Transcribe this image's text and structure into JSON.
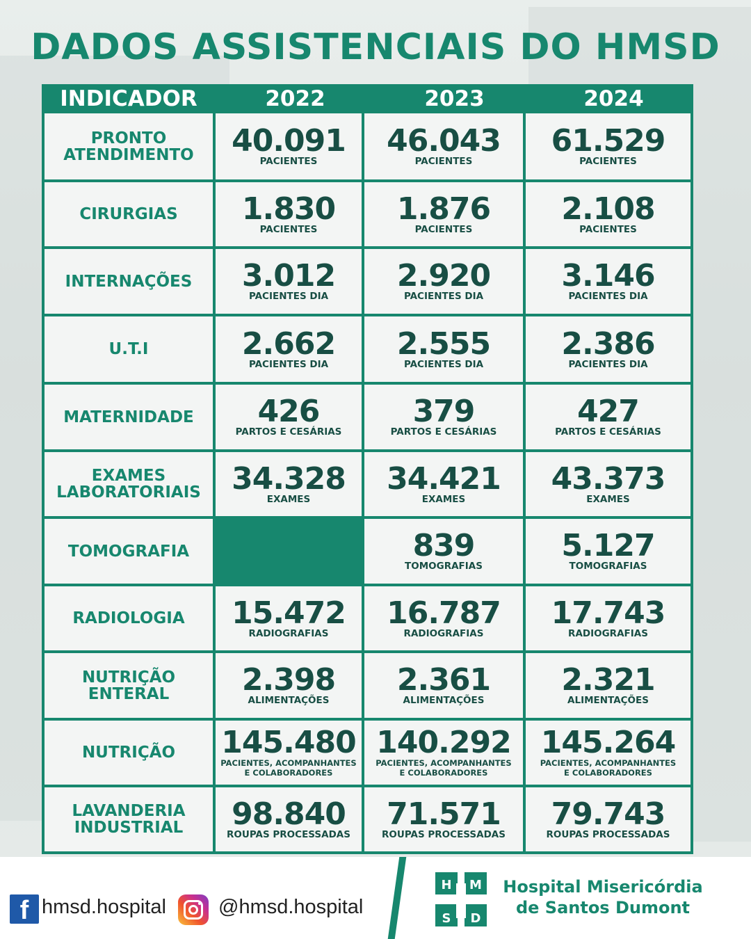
{
  "title": "DADOS ASSISTENCIAIS DO HMSD",
  "header": {
    "indicador": "INDICADOR",
    "years": [
      "2022",
      "2023",
      "2024"
    ]
  },
  "rows": [
    {
      "label": "PRONTO\nATENDIMENTO",
      "cells": [
        {
          "value": "40.091",
          "unit": "PACIENTES"
        },
        {
          "value": "46.043",
          "unit": "PACIENTES"
        },
        {
          "value": "61.529",
          "unit": "PACIENTES"
        }
      ]
    },
    {
      "label": "CIRURGIAS",
      "cells": [
        {
          "value": "1.830",
          "unit": "PACIENTES"
        },
        {
          "value": "1.876",
          "unit": "PACIENTES"
        },
        {
          "value": "2.108",
          "unit": "PACIENTES"
        }
      ]
    },
    {
      "label": "INTERNAÇÕES",
      "cells": [
        {
          "value": "3.012",
          "unit": "PACIENTES DIA"
        },
        {
          "value": "2.920",
          "unit": "PACIENTES DIA"
        },
        {
          "value": "3.146",
          "unit": "PACIENTES DIA"
        }
      ]
    },
    {
      "label": "U.T.I",
      "cells": [
        {
          "value": "2.662",
          "unit": "PACIENTES DIA"
        },
        {
          "value": "2.555",
          "unit": "PACIENTES DIA"
        },
        {
          "value": "2.386",
          "unit": "PACIENTES DIA"
        }
      ]
    },
    {
      "label": "MATERNIDADE",
      "cells": [
        {
          "value": "426",
          "unit": "PARTOS E CESÁRIAS"
        },
        {
          "value": "379",
          "unit": "PARTOS E CESÁRIAS"
        },
        {
          "value": "427",
          "unit": "PARTOS E CESÁRIAS"
        }
      ]
    },
    {
      "label": "EXAMES\nLABORATORIAIS",
      "cells": [
        {
          "value": "34.328",
          "unit": "EXAMES"
        },
        {
          "value": "34.421",
          "unit": "EXAMES"
        },
        {
          "value": "43.373",
          "unit": "EXAMES"
        }
      ]
    },
    {
      "label": "TOMOGRAFIA",
      "cells": [
        null,
        {
          "value": "839",
          "unit": "TOMOGRAFIAS"
        },
        {
          "value": "5.127",
          "unit": "TOMOGRAFIAS"
        }
      ]
    },
    {
      "label": "RADIOLOGIA",
      "cells": [
        {
          "value": "15.472",
          "unit": "RADIOGRAFIAS"
        },
        {
          "value": "16.787",
          "unit": "RADIOGRAFIAS"
        },
        {
          "value": "17.743",
          "unit": "RADIOGRAFIAS"
        }
      ]
    },
    {
      "label": "NUTRIÇÃO\nENTERAL",
      "cells": [
        {
          "value": "2.398",
          "unit": "ALIMENTAÇÕES"
        },
        {
          "value": "2.361",
          "unit": "ALIMENTAÇÕES"
        },
        {
          "value": "2.321",
          "unit": "ALIMENTAÇÕES"
        }
      ]
    },
    {
      "label": "NUTRIÇÃO",
      "cells": [
        {
          "value": "145.480",
          "unit": "PACIENTES, ACOMPANHANTES\nE COLABORADORES",
          "small": true
        },
        {
          "value": "140.292",
          "unit": "PACIENTES, ACOMPANHANTES\nE COLABORADORES",
          "small": true
        },
        {
          "value": "145.264",
          "unit": "PACIENTES, ACOMPANHANTES\nE COLABORADORES",
          "small": true
        }
      ]
    },
    {
      "label": "LAVANDERIA\nINDUSTRIAL",
      "cells": [
        {
          "value": "98.840",
          "unit": "ROUPAS PROCESSADAS"
        },
        {
          "value": "71.571",
          "unit": "ROUPAS PROCESSADAS"
        },
        {
          "value": "79.743",
          "unit": "ROUPAS PROCESSADAS"
        }
      ]
    }
  ],
  "footer": {
    "facebook_icon": "facebook-icon",
    "facebook": "hmsd.hospital",
    "instagram_icon": "instagram-icon",
    "instagram": "@hmsd.hospital",
    "logo_letters": [
      "H",
      "M",
      "S",
      "D"
    ],
    "hospital_name_line1": "Hospital Misericórdia",
    "hospital_name_line2": "de Santos Dumont"
  },
  "colors": {
    "accent": "#17876e",
    "number": "#184e44",
    "cell_bg": "#f3f5f4"
  }
}
